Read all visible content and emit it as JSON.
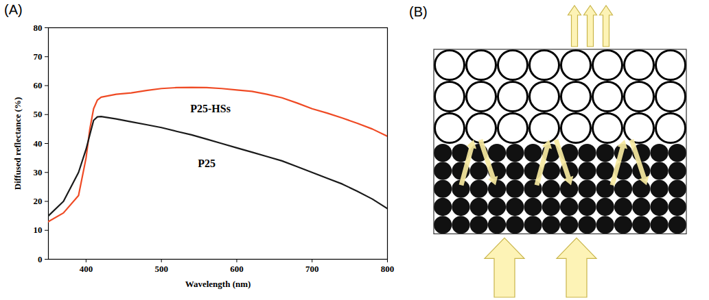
{
  "chart_data": {
    "type": "line",
    "panel_label": "(A)",
    "x_label": "Wavelength (nm)",
    "y_label": "Diffused reflectance (%)",
    "x": [
      350,
      370,
      390,
      400,
      405,
      410,
      415,
      420,
      440,
      460,
      480,
      500,
      520,
      540,
      560,
      580,
      600,
      620,
      640,
      660,
      680,
      700,
      720,
      740,
      760,
      780,
      800
    ],
    "series": [
      {
        "name": "P25-HSs",
        "color": "#ef4a24",
        "label_x": 565,
        "label_y": 52,
        "values": [
          13,
          16,
          22,
          35,
          45,
          52,
          55,
          56,
          57,
          57.5,
          58.3,
          59,
          59.3,
          59.4,
          59.3,
          59,
          58.5,
          58,
          57,
          55.8,
          54,
          52,
          50.5,
          48.8,
          47,
          45,
          42.5
        ]
      },
      {
        "name": "P25",
        "color": "#1a1a1a",
        "label_x": 560,
        "label_y": 33,
        "values": [
          15,
          20,
          30,
          38,
          43,
          48,
          49.2,
          49.3,
          48.5,
          47.5,
          46.5,
          45.5,
          44.2,
          43,
          41.5,
          40,
          38.5,
          37,
          35.5,
          34,
          32,
          30,
          28,
          26,
          23.5,
          20.8,
          17.5
        ]
      }
    ],
    "xlim": [
      350,
      800
    ],
    "xticks": [
      400,
      500,
      600,
      700,
      800
    ],
    "ylim": [
      0,
      80
    ],
    "yticks": [
      0,
      10,
      20,
      30,
      40,
      50,
      60,
      70,
      80
    ],
    "grid": false
  },
  "diagram": {
    "panel_label": "(B)"
  }
}
